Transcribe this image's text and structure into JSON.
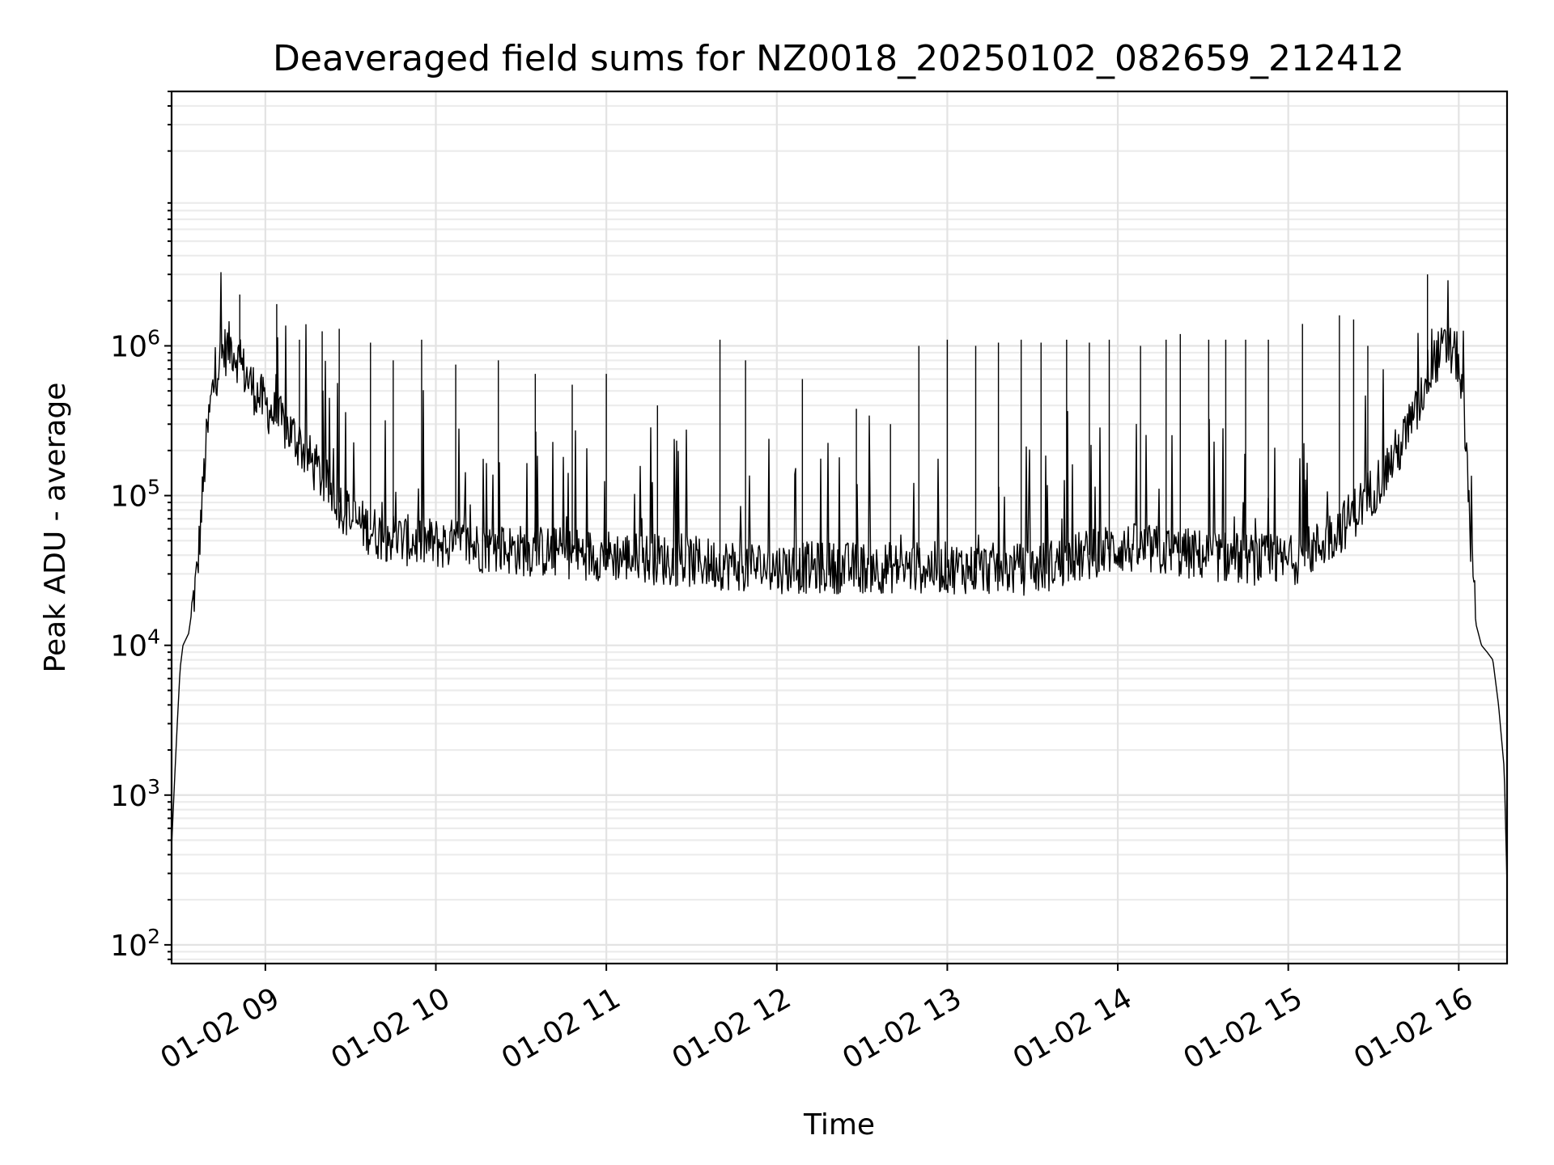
{
  "chart_data": {
    "type": "line",
    "title": "Deaveraged field sums for NZ0018_20250102_082659_212412",
    "xlabel": "Time",
    "ylabel": "Peak ADU - average",
    "y_scale": "log",
    "ylim": [
      75,
      50000000
    ],
    "xlim": [
      "2025-01-02T08:27:00",
      "2025-01-02T16:17:00"
    ],
    "x_ticks": [
      "2025-01-02T09:00",
      "2025-01-02T10:00",
      "2025-01-02T11:00",
      "2025-01-02T12:00",
      "2025-01-02T13:00",
      "2025-01-02T14:00",
      "2025-01-02T15:00",
      "2025-01-02T16:00"
    ],
    "x_tick_labels": [
      "01-02 09",
      "01-02 10",
      "01-02 11",
      "01-02 12",
      "01-02 13",
      "01-02 14",
      "01-02 15",
      "01-02 16"
    ],
    "y_ticks": [
      100,
      1000,
      10000,
      100000,
      1000000
    ],
    "y_tick_labels": [
      {
        "base": "10",
        "exp": "2"
      },
      {
        "base": "10",
        "exp": "3"
      },
      {
        "base": "10",
        "exp": "4"
      },
      {
        "base": "10",
        "exp": "5"
      },
      {
        "base": "10",
        "exp": "6"
      }
    ],
    "grid": "major and minor",
    "legend": "none",
    "series": [
      {
        "color": "#000000",
        "x": [
          "2025-01-02T08:27",
          "2025-01-02T08:28",
          "2025-01-02T08:29",
          "2025-01-02T08:30",
          "2025-01-02T08:31",
          "2025-01-02T08:33",
          "2025-01-02T08:36",
          "2025-01-02T08:39",
          "2025-01-02T08:41",
          "2025-01-02T08:43",
          "2025-01-02T08:45",
          "2025-01-02T08:48",
          "2025-01-02T08:50",
          "2025-01-02T08:52",
          "2025-01-02T08:55",
          "2025-01-02T09:00",
          "2025-01-02T09:10",
          "2025-01-02T09:20",
          "2025-01-02T09:30",
          "2025-01-02T09:40",
          "2025-01-02T09:50",
          "2025-01-02T10:00",
          "2025-01-02T10:30",
          "2025-01-02T11:00",
          "2025-01-02T11:30",
          "2025-01-02T12:00",
          "2025-01-02T12:30",
          "2025-01-02T13:00",
          "2025-01-02T13:30",
          "2025-01-02T14:00",
          "2025-01-02T14:30",
          "2025-01-02T15:00",
          "2025-01-02T15:10",
          "2025-01-02T15:20",
          "2025-01-02T15:30",
          "2025-01-02T15:40",
          "2025-01-02T15:45",
          "2025-01-02T15:50",
          "2025-01-02T15:55",
          "2025-01-02T15:58",
          "2025-01-02T16:00",
          "2025-01-02T16:02",
          "2025-01-02T16:04",
          "2025-01-02T16:06",
          "2025-01-02T16:08",
          "2025-01-02T16:10",
          "2025-01-02T16:12",
          "2025-01-02T16:14",
          "2025-01-02T16:16",
          "2025-01-02T16:17"
        ],
        "values": [
          450,
          1200,
          3000,
          7000,
          10000,
          12000,
          30000,
          200000,
          450000,
          700000,
          900000,
          1000000,
          850000,
          700000,
          550000,
          400000,
          250000,
          130000,
          70000,
          55000,
          50000,
          48000,
          43000,
          40000,
          36000,
          33000,
          33000,
          33000,
          32000,
          45000,
          40000,
          36000,
          45000,
          65000,
          110000,
          220000,
          350000,
          750000,
          950000,
          900000,
          800000,
          300000,
          60000,
          14000,
          10000,
          9000,
          8000,
          4000,
          1500,
          250
        ]
      }
    ],
    "spikes": [
      {
        "x": "2025-01-02T08:51",
        "y": 2200000
      },
      {
        "x": "2025-01-02T09:04",
        "y": 1900000
      },
      {
        "x": "2025-01-02T09:12",
        "y": 1100000
      },
      {
        "x": "2025-01-02T09:20",
        "y": 1250000
      },
      {
        "x": "2025-01-02T09:26",
        "y": 1300000
      },
      {
        "x": "2025-01-02T09:37",
        "y": 1050000
      },
      {
        "x": "2025-01-02T09:45",
        "y": 800000
      },
      {
        "x": "2025-01-02T09:55",
        "y": 1100000
      },
      {
        "x": "2025-01-02T10:07",
        "y": 750000
      },
      {
        "x": "2025-01-02T10:22",
        "y": 800000
      },
      {
        "x": "2025-01-02T10:35",
        "y": 650000
      },
      {
        "x": "2025-01-02T10:48",
        "y": 550000
      },
      {
        "x": "2025-01-02T11:00",
        "y": 650000
      },
      {
        "x": "2025-01-02T11:18",
        "y": 400000
      },
      {
        "x": "2025-01-02T11:40",
        "y": 1100000
      },
      {
        "x": "2025-01-02T11:49",
        "y": 800000
      },
      {
        "x": "2025-01-02T12:09",
        "y": 600000
      },
      {
        "x": "2025-01-02T12:28",
        "y": 380000
      },
      {
        "x": "2025-01-02T12:40",
        "y": 300000
      },
      {
        "x": "2025-01-02T12:50",
        "y": 1000000
      },
      {
        "x": "2025-01-02T13:00",
        "y": 1100000
      },
      {
        "x": "2025-01-02T13:10",
        "y": 1000000
      },
      {
        "x": "2025-01-02T13:18",
        "y": 1050000
      },
      {
        "x": "2025-01-02T13:26",
        "y": 1100000
      },
      {
        "x": "2025-01-02T13:33",
        "y": 1050000
      },
      {
        "x": "2025-01-02T13:42",
        "y": 1100000
      },
      {
        "x": "2025-01-02T13:50",
        "y": 1050000
      },
      {
        "x": "2025-01-02T13:57",
        "y": 1100000
      },
      {
        "x": "2025-01-02T14:08",
        "y": 1000000
      },
      {
        "x": "2025-01-02T14:17",
        "y": 1100000
      },
      {
        "x": "2025-01-02T14:22",
        "y": 1200000
      },
      {
        "x": "2025-01-02T14:32",
        "y": 1100000
      },
      {
        "x": "2025-01-02T14:38",
        "y": 1100000
      },
      {
        "x": "2025-01-02T14:45",
        "y": 1100000
      },
      {
        "x": "2025-01-02T14:53",
        "y": 1100000
      },
      {
        "x": "2025-01-02T15:05",
        "y": 1400000
      },
      {
        "x": "2025-01-02T15:18",
        "y": 1600000
      },
      {
        "x": "2025-01-02T15:23",
        "y": 1500000
      },
      {
        "x": "2025-01-02T15:28",
        "y": 1000000
      },
      {
        "x": "2025-01-02T15:49",
        "y": 3000000
      }
    ]
  }
}
